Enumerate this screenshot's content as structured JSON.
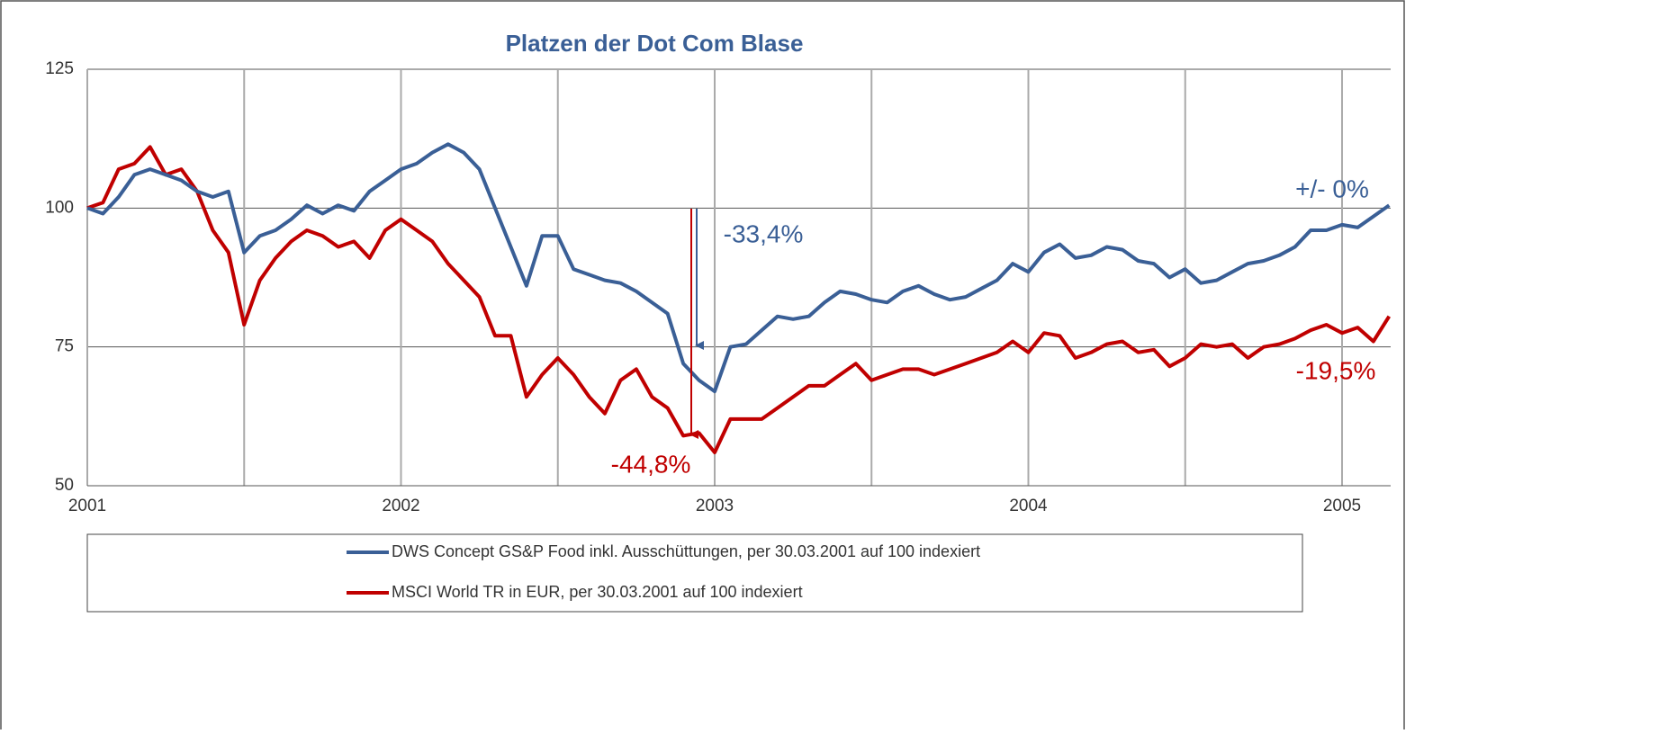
{
  "chart_data": {
    "type": "line",
    "title": "Platzen der Dot Com Blase",
    "x": [
      2001.0,
      2001.05,
      2001.1,
      2001.15,
      2001.2,
      2001.25,
      2001.3,
      2001.35,
      2001.4,
      2001.45,
      2001.5,
      2001.55,
      2001.6,
      2001.65,
      2001.7,
      2001.75,
      2001.8,
      2001.85,
      2001.9,
      2001.95,
      2002.0,
      2002.05,
      2002.1,
      2002.15,
      2002.2,
      2002.25,
      2002.3,
      2002.35,
      2002.4,
      2002.45,
      2002.5,
      2002.55,
      2002.6,
      2002.65,
      2002.7,
      2002.75,
      2002.8,
      2002.85,
      2002.9,
      2002.95,
      2003.0,
      2003.05,
      2003.1,
      2003.15,
      2003.2,
      2003.25,
      2003.3,
      2003.35,
      2003.4,
      2003.45,
      2003.5,
      2003.55,
      2003.6,
      2003.65,
      2003.7,
      2003.75,
      2003.8,
      2003.85,
      2003.9,
      2003.95,
      2004.0,
      2004.05,
      2004.1,
      2004.15,
      2004.2,
      2004.25,
      2004.3,
      2004.35,
      2004.4,
      2004.45,
      2004.5,
      2004.55,
      2004.6,
      2004.65,
      2004.7,
      2004.75,
      2004.8,
      2004.85,
      2004.9,
      2004.95,
      2005.0,
      2005.05,
      2005.1,
      2005.15
    ],
    "series": [
      {
        "name": "DWS Concept GS&P Food inkl. Ausschüttungen, per 30.03.2001 auf 100 indexiert",
        "color": "#3a5f96",
        "values": [
          100,
          99,
          102,
          106,
          107,
          106,
          105,
          103,
          102,
          103,
          92,
          95,
          96,
          98,
          100.5,
          99,
          100.5,
          99.5,
          103,
          105,
          107,
          108,
          110,
          111.5,
          110,
          107,
          100,
          93,
          86,
          95,
          95,
          89,
          88,
          87,
          86.5,
          85,
          83,
          81,
          72,
          69,
          67,
          75,
          75.5,
          78,
          80.5,
          80,
          80.5,
          83,
          85,
          84.5,
          83.5,
          83,
          85,
          86,
          84.5,
          83.5,
          84,
          85.5,
          87,
          90,
          88.5,
          92,
          93.5,
          91,
          91.5,
          93,
          92.5,
          90.5,
          90,
          87.5,
          89,
          86.5,
          87,
          88.5,
          90,
          90.5,
          91.5,
          93,
          96,
          96,
          97,
          96.5,
          98.5,
          100.5
        ]
      },
      {
        "name": "MSCI World TR in EUR, per 30.03.2001 auf 100 indexiert",
        "color": "#c00000",
        "values": [
          100,
          101,
          107,
          108,
          111,
          106,
          107,
          103,
          96,
          92,
          79,
          87,
          91,
          94,
          96,
          95,
          93,
          94,
          91,
          96,
          98,
          96,
          94,
          90,
          87,
          84,
          77,
          77,
          66,
          70,
          73,
          70,
          66,
          63,
          69,
          71,
          66,
          64,
          59,
          59.5,
          56,
          62,
          62,
          62,
          64,
          66,
          68,
          68,
          70,
          72,
          69,
          70,
          71,
          71,
          70,
          71,
          72,
          73,
          74,
          76,
          74,
          77.5,
          77,
          73,
          74,
          75.5,
          76,
          74,
          74.5,
          71.5,
          73,
          75.5,
          75,
          75.5,
          73,
          75,
          75.5,
          76.5,
          78,
          79,
          77.5,
          78.5,
          76,
          80.5
        ]
      }
    ],
    "annotations": [
      {
        "text": "+/- 0%",
        "color": "#3a5f96"
      },
      {
        "text": "-33,4%",
        "color": "#3a5f96"
      },
      {
        "text": "-44,8%",
        "color": "#c00000"
      },
      {
        "text": "-19,5%",
        "color": "#c00000"
      }
    ],
    "xlim": [
      2001,
      2005.155
    ],
    "xticks": [
      2001,
      2002,
      2003,
      2004,
      2005
    ],
    "ylim": [
      50,
      125
    ],
    "yticks": [
      50,
      75,
      100,
      125
    ],
    "grid": true
  }
}
